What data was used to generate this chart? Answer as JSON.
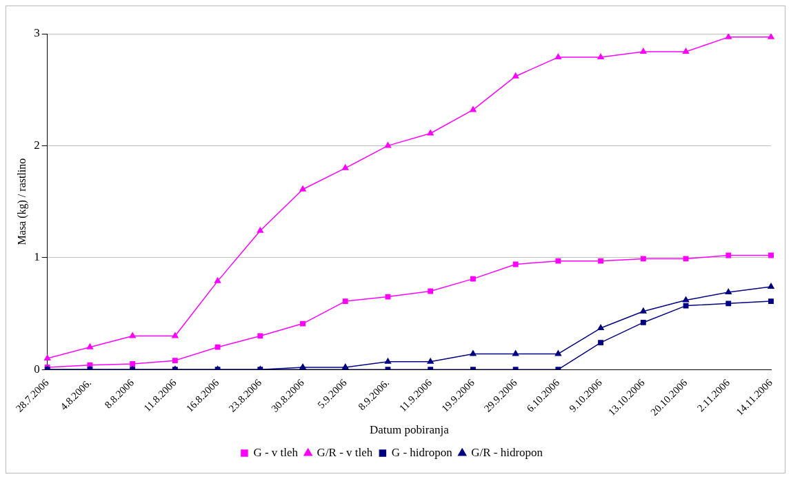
{
  "chart_data": {
    "type": "line",
    "xlabel": "Datum pobiranja",
    "ylabel": "Masa (kg) / rastlino",
    "categories": [
      "28.7.2006",
      "4.8.2006.",
      "8.8.2006",
      "11.8.2006",
      "16.8.2006",
      "23.8.2006",
      "30.8.2006",
      "5.9.2006",
      "8.9.2006.",
      "11.9.2006",
      "19.9.2006",
      "29.9.2006",
      "6.10.2006",
      "9.10.2006",
      "13.10.2006",
      "20.10.2006",
      "2.11.2006",
      "14.11.2006"
    ],
    "series": [
      {
        "name": "G - v tleh",
        "color": "#ff00ff",
        "marker": "square",
        "values": [
          0.02,
          0.04,
          0.05,
          0.08,
          0.2,
          0.3,
          0.41,
          0.61,
          0.65,
          0.7,
          0.81,
          0.94,
          0.97,
          0.97,
          0.99,
          0.99,
          1.02,
          1.02
        ]
      },
      {
        "name": "G/R - v tleh",
        "color": "#ff00ff",
        "marker": "triangle",
        "values": [
          0.1,
          0.2,
          0.3,
          0.3,
          0.79,
          1.24,
          1.61,
          1.8,
          2.0,
          2.11,
          2.32,
          2.62,
          2.79,
          2.79,
          2.84,
          2.84,
          2.97,
          2.97
        ]
      },
      {
        "name": "G - hidropon",
        "color": "#000080",
        "marker": "square",
        "values": [
          0,
          0,
          0,
          0,
          0,
          0,
          0,
          0,
          0,
          0,
          0,
          0,
          0,
          0.24,
          0.42,
          0.57,
          0.59,
          0.61
        ]
      },
      {
        "name": "G/R - hidropon",
        "color": "#000080",
        "marker": "triangle",
        "values": [
          0,
          0,
          0,
          0,
          0,
          0,
          0.02,
          0.02,
          0.07,
          0.07,
          0.14,
          0.14,
          0.14,
          0.37,
          0.52,
          0.62,
          0.69,
          0.74
        ]
      }
    ],
    "ylim": [
      0,
      3
    ],
    "yticks": [
      0,
      1,
      2,
      3
    ],
    "grid": "y",
    "legend": "bottom",
    "line_style": "solid"
  }
}
